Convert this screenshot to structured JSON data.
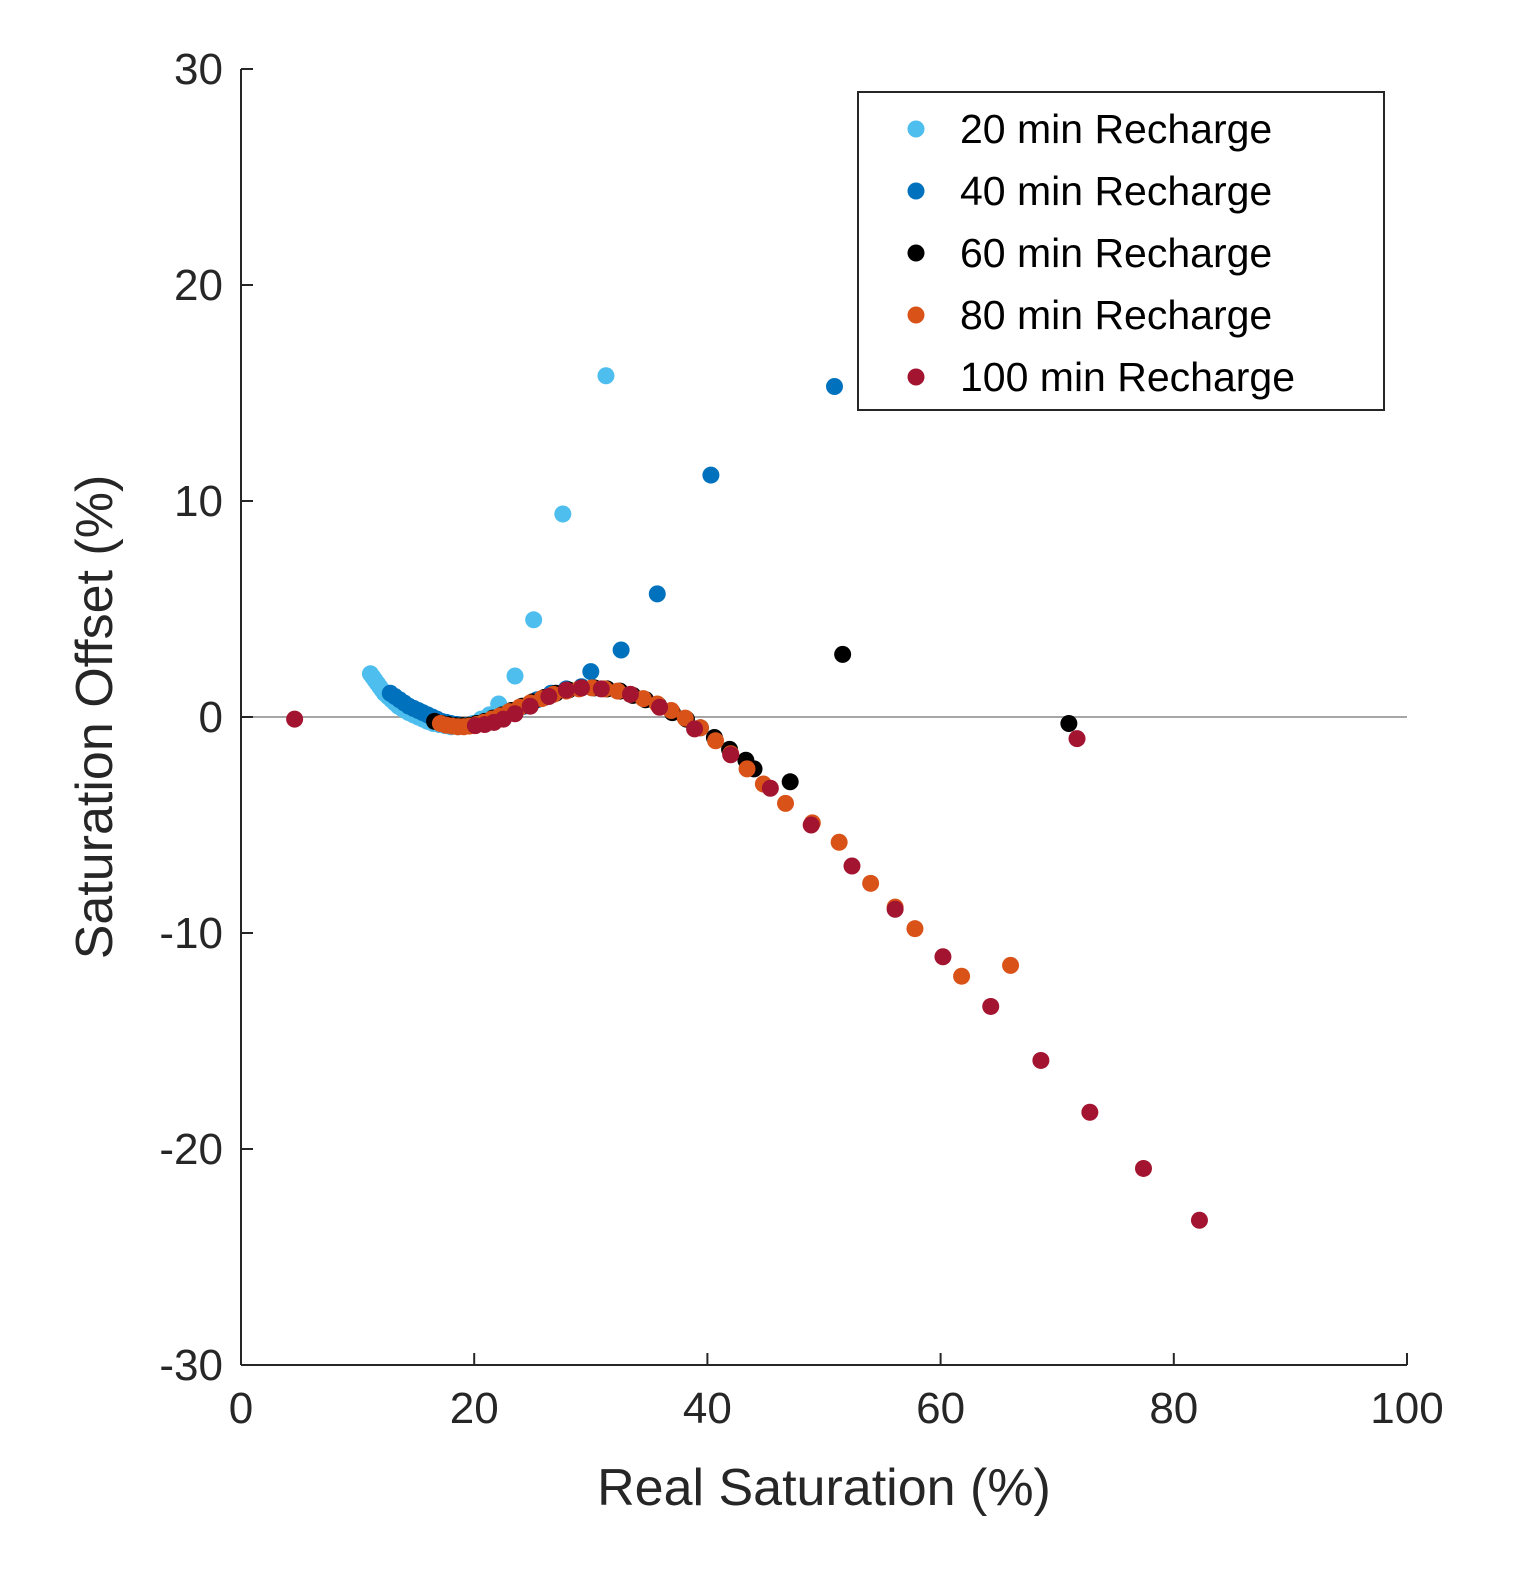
{
  "chart_data": {
    "type": "scatter",
    "title": "",
    "xlabel": "Real Saturation (%)",
    "ylabel": "Saturation Offset (%)",
    "xlim": [
      0,
      100
    ],
    "ylim": [
      -30,
      30
    ],
    "xticks": [
      "0",
      "20",
      "40",
      "60",
      "80",
      "100"
    ],
    "yticks": [
      "30",
      "20",
      "10",
      "0",
      "-10",
      "-20",
      "-30"
    ],
    "grid": false,
    "zero_line": true,
    "legend_position": "top-right",
    "series": [
      {
        "name": "20 min Recharge",
        "color": "#4DBEEE",
        "x": [
          11.1,
          11.3,
          11.5,
          11.7,
          11.9,
          12.1,
          12.3,
          12.6,
          12.9,
          13.2,
          13.5,
          13.8,
          14.1,
          14.4,
          14.8,
          15.2,
          15.6,
          16.0,
          16.5,
          17.0,
          17.5,
          18.0,
          18.6,
          19.2,
          19.9,
          20.6,
          21.3,
          22.1,
          23.5,
          25.1,
          27.6,
          31.3
        ],
        "y": [
          2.0,
          1.85,
          1.7,
          1.55,
          1.4,
          1.25,
          1.1,
          0.95,
          0.8,
          0.65,
          0.5,
          0.4,
          0.3,
          0.2,
          0.1,
          0.0,
          -0.1,
          -0.2,
          -0.3,
          -0.35,
          -0.4,
          -0.45,
          -0.45,
          -0.4,
          -0.3,
          -0.1,
          0.1,
          0.6,
          1.9,
          4.5,
          9.4,
          15.8
        ]
      },
      {
        "name": "40 min Recharge",
        "color": "#0072BD",
        "x": [
          12.8,
          13.2,
          13.6,
          14.0,
          14.4,
          14.8,
          15.2,
          15.6,
          16.0,
          16.4,
          16.8,
          17.2,
          17.6,
          18.0,
          18.5,
          19.0,
          19.6,
          20.2,
          20.9,
          21.6,
          22.4,
          23.3,
          24.3,
          25.4,
          26.6,
          27.9,
          29.2,
          30.0,
          32.6,
          35.7,
          40.3,
          50.9
        ],
        "y": [
          1.1,
          0.95,
          0.8,
          0.65,
          0.5,
          0.4,
          0.3,
          0.2,
          0.1,
          0.0,
          -0.1,
          -0.2,
          -0.25,
          -0.3,
          -0.35,
          -0.4,
          -0.4,
          -0.35,
          -0.3,
          -0.2,
          0.0,
          0.2,
          0.5,
          0.8,
          1.1,
          1.3,
          1.4,
          2.1,
          3.1,
          5.7,
          11.2,
          15.3
        ]
      },
      {
        "name": "60 min Recharge",
        "color": "#000000",
        "x": [
          16.6,
          17.2,
          17.8,
          18.4,
          19.0,
          19.6,
          20.2,
          20.9,
          21.6,
          22.4,
          23.2,
          24.1,
          25.0,
          26.0,
          27.0,
          28.1,
          29.2,
          30.3,
          31.4,
          32.5,
          33.6,
          34.7,
          35.8,
          37.0,
          38.2,
          39.4,
          40.6,
          41.9,
          43.3,
          44.0,
          47.1,
          51.6,
          71.0
        ],
        "y": [
          -0.2,
          -0.3,
          -0.35,
          -0.4,
          -0.4,
          -0.38,
          -0.3,
          -0.2,
          -0.05,
          0.1,
          0.3,
          0.5,
          0.7,
          0.9,
          1.1,
          1.25,
          1.35,
          1.35,
          1.3,
          1.2,
          1.0,
          0.8,
          0.55,
          0.2,
          -0.1,
          -0.5,
          -0.95,
          -1.5,
          -2.0,
          -2.4,
          -3.0,
          2.9,
          -0.3
        ]
      },
      {
        "name": "80 min Recharge",
        "color": "#D95319",
        "x": [
          17.1,
          17.6,
          18.1,
          18.6,
          19.1,
          19.6,
          20.2,
          20.8,
          21.5,
          22.2,
          23.0,
          23.9,
          24.8,
          25.8,
          26.8,
          27.9,
          29.0,
          30.1,
          31.2,
          32.3,
          33.4,
          34.5,
          35.7,
          36.9,
          38.1,
          39.4,
          40.7,
          42.0,
          43.4,
          44.8,
          46.7,
          49.0,
          51.3,
          54.0,
          56.1,
          57.8,
          61.8,
          66.0
        ],
        "y": [
          -0.3,
          -0.38,
          -0.42,
          -0.45,
          -0.45,
          -0.42,
          -0.35,
          -0.25,
          -0.1,
          0.05,
          0.25,
          0.45,
          0.65,
          0.85,
          1.05,
          1.2,
          1.3,
          1.35,
          1.3,
          1.2,
          1.05,
          0.85,
          0.6,
          0.3,
          -0.05,
          -0.5,
          -1.1,
          -1.7,
          -2.4,
          -3.1,
          -4.0,
          -4.9,
          -5.8,
          -7.7,
          -8.8,
          -9.8,
          -12.0,
          -11.5
        ]
      },
      {
        "name": "100 min Recharge",
        "color": "#A2142F",
        "x": [
          4.6,
          20.1,
          20.9,
          21.7,
          22.5,
          23.5,
          24.8,
          26.4,
          27.9,
          29.2,
          30.9,
          33.4,
          35.9,
          38.9,
          42.0,
          45.4,
          48.9,
          52.4,
          56.1,
          60.2,
          64.3,
          68.6,
          72.8,
          77.4,
          82.2,
          71.7
        ],
        "y": [
          -0.1,
          -0.4,
          -0.35,
          -0.25,
          -0.1,
          0.15,
          0.5,
          0.95,
          1.25,
          1.35,
          1.3,
          1.05,
          0.45,
          -0.55,
          -1.75,
          -3.3,
          -5.0,
          -6.9,
          -8.9,
          -11.1,
          -13.4,
          -15.9,
          -18.3,
          -20.9,
          -23.3,
          -1.0
        ]
      }
    ]
  }
}
